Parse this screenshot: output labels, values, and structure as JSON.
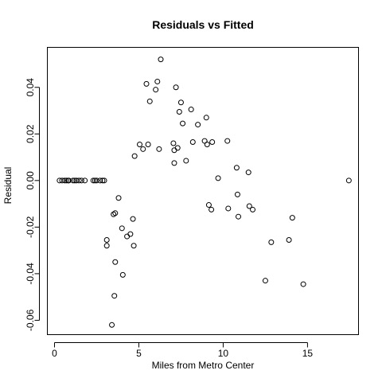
{
  "chart_data": {
    "type": "scatter",
    "title": "Residuals vs Fitted",
    "xlabel": "Miles from Metro Center",
    "ylabel": "Residual",
    "xlim": [
      -0.4,
      18.0
    ],
    "ylim": [
      -0.066,
      0.057
    ],
    "xticks": [
      0,
      5,
      10,
      15
    ],
    "xtick_labels": [
      "0",
      "5",
      "10",
      "15"
    ],
    "yticks": [
      -0.06,
      -0.04,
      -0.02,
      0.0,
      0.02,
      0.04
    ],
    "ytick_labels": [
      "-0.06",
      "-0.04",
      "-0.02",
      "0.00",
      "0.02",
      "0.04"
    ],
    "grid": false,
    "marker": "open-circle",
    "points": [
      {
        "x": 0.3,
        "y": 0.0
      },
      {
        "x": 0.45,
        "y": 0.0
      },
      {
        "x": 0.6,
        "y": 0.0
      },
      {
        "x": 0.7,
        "y": 0.0
      },
      {
        "x": 0.8,
        "y": 0.0
      },
      {
        "x": 0.85,
        "y": 0.0
      },
      {
        "x": 1.1,
        "y": 0.0
      },
      {
        "x": 1.2,
        "y": 0.0
      },
      {
        "x": 1.3,
        "y": 0.0
      },
      {
        "x": 1.45,
        "y": 0.0
      },
      {
        "x": 1.6,
        "y": 0.0
      },
      {
        "x": 1.8,
        "y": 0.0
      },
      {
        "x": 2.3,
        "y": 0.0
      },
      {
        "x": 2.4,
        "y": 0.0
      },
      {
        "x": 2.5,
        "y": 0.0
      },
      {
        "x": 2.7,
        "y": 0.0
      },
      {
        "x": 2.85,
        "y": 0.0
      },
      {
        "x": 2.95,
        "y": 0.0
      },
      {
        "x": 3.1,
        "y": -0.0255
      },
      {
        "x": 3.1,
        "y": -0.028
      },
      {
        "x": 3.4,
        "y": -0.062
      },
      {
        "x": 3.5,
        "y": -0.0145
      },
      {
        "x": 3.55,
        "y": -0.0495
      },
      {
        "x": 3.6,
        "y": -0.035
      },
      {
        "x": 3.6,
        "y": -0.014
      },
      {
        "x": 3.8,
        "y": -0.0075
      },
      {
        "x": 4.0,
        "y": -0.0205
      },
      {
        "x": 4.05,
        "y": -0.0405
      },
      {
        "x": 4.3,
        "y": -0.024
      },
      {
        "x": 4.5,
        "y": -0.023
      },
      {
        "x": 4.65,
        "y": -0.0165
      },
      {
        "x": 4.7,
        "y": -0.028
      },
      {
        "x": 4.75,
        "y": 0.0105
      },
      {
        "x": 5.05,
        "y": 0.0155
      },
      {
        "x": 5.25,
        "y": 0.0135
      },
      {
        "x": 5.45,
        "y": 0.0415
      },
      {
        "x": 5.55,
        "y": 0.0155
      },
      {
        "x": 5.65,
        "y": 0.034
      },
      {
        "x": 6.0,
        "y": 0.039
      },
      {
        "x": 6.1,
        "y": 0.0425
      },
      {
        "x": 6.2,
        "y": 0.0135
      },
      {
        "x": 6.3,
        "y": 0.052
      },
      {
        "x": 7.05,
        "y": 0.016
      },
      {
        "x": 7.1,
        "y": 0.013
      },
      {
        "x": 7.1,
        "y": 0.0075
      },
      {
        "x": 7.2,
        "y": 0.04
      },
      {
        "x": 7.3,
        "y": 0.014
      },
      {
        "x": 7.4,
        "y": 0.0295
      },
      {
        "x": 7.5,
        "y": 0.0335
      },
      {
        "x": 7.6,
        "y": 0.0245
      },
      {
        "x": 7.8,
        "y": 0.0085
      },
      {
        "x": 8.1,
        "y": 0.0305
      },
      {
        "x": 8.2,
        "y": 0.0165
      },
      {
        "x": 8.5,
        "y": 0.024
      },
      {
        "x": 8.9,
        "y": 0.017
      },
      {
        "x": 9.0,
        "y": 0.027
      },
      {
        "x": 9.05,
        "y": 0.0155
      },
      {
        "x": 9.15,
        "y": -0.0105
      },
      {
        "x": 9.3,
        "y": -0.0125
      },
      {
        "x": 9.35,
        "y": 0.0165
      },
      {
        "x": 9.7,
        "y": 0.001
      },
      {
        "x": 10.25,
        "y": 0.017
      },
      {
        "x": 10.3,
        "y": -0.012
      },
      {
        "x": 10.8,
        "y": 0.0055
      },
      {
        "x": 10.85,
        "y": -0.006
      },
      {
        "x": 10.9,
        "y": -0.0155
      },
      {
        "x": 11.5,
        "y": 0.0035
      },
      {
        "x": 11.55,
        "y": -0.011
      },
      {
        "x": 11.75,
        "y": -0.0125
      },
      {
        "x": 12.5,
        "y": -0.043
      },
      {
        "x": 12.85,
        "y": -0.0265
      },
      {
        "x": 13.9,
        "y": -0.0255
      },
      {
        "x": 14.1,
        "y": -0.016
      },
      {
        "x": 14.75,
        "y": -0.0445
      },
      {
        "x": 17.45,
        "y": 0.0
      }
    ]
  }
}
